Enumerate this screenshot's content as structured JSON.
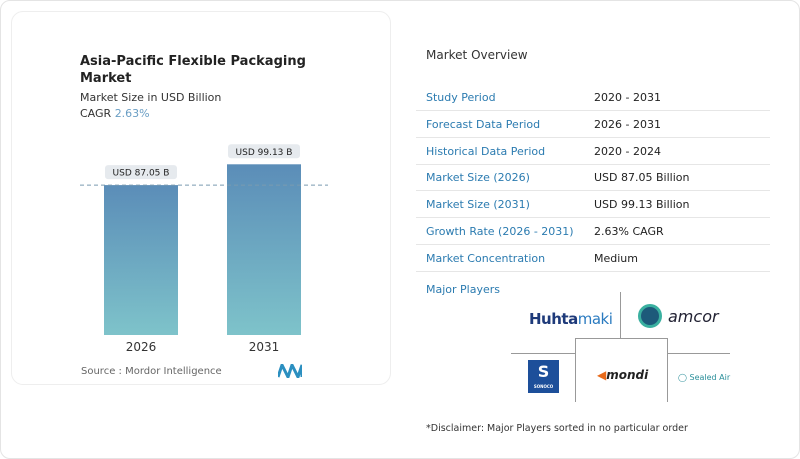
{
  "chart_data": {
    "type": "bar",
    "title": "Asia-Pacific Flexible Packaging Market",
    "subtitle": "Market Size in USD Billion",
    "cagr_label": "CAGR",
    "cagr_value": "2.63%",
    "categories": [
      "2026",
      "2031"
    ],
    "values": [
      87.05,
      99.13
    ],
    "data_labels": [
      "USD 87.05 B",
      "USD 99.13 B"
    ],
    "grid": false,
    "colors": {
      "bar_top": "#5b8db8",
      "bar_bottom": "#7ec3ca"
    }
  },
  "source": "Source :  Mordor Intelligence",
  "overview": {
    "title": "Market Overview",
    "rows": [
      {
        "label": "Study Period",
        "value": "2020 - 2031"
      },
      {
        "label": "Forecast Data Period",
        "value": "2026 - 2031"
      },
      {
        "label": "Historical Data Period",
        "value": "2020 - 2024"
      },
      {
        "label": "Market Size (2026)",
        "value": "USD 87.05 Billion"
      },
      {
        "label": "Market Size (2031)",
        "value": "USD 99.13 Billion"
      },
      {
        "label": "Growth Rate (2026 - 2031)",
        "value": "2.63% CAGR"
      },
      {
        "label": "Market Concentration",
        "value": "Medium"
      }
    ]
  },
  "players": {
    "title": "Major Players",
    "logos": [
      "Huhtamaki",
      "amcor",
      "SONOCO",
      "mondi",
      "Sealed Air"
    ]
  },
  "disclaimer": "*Disclaimer: Major Players sorted in no particular order"
}
